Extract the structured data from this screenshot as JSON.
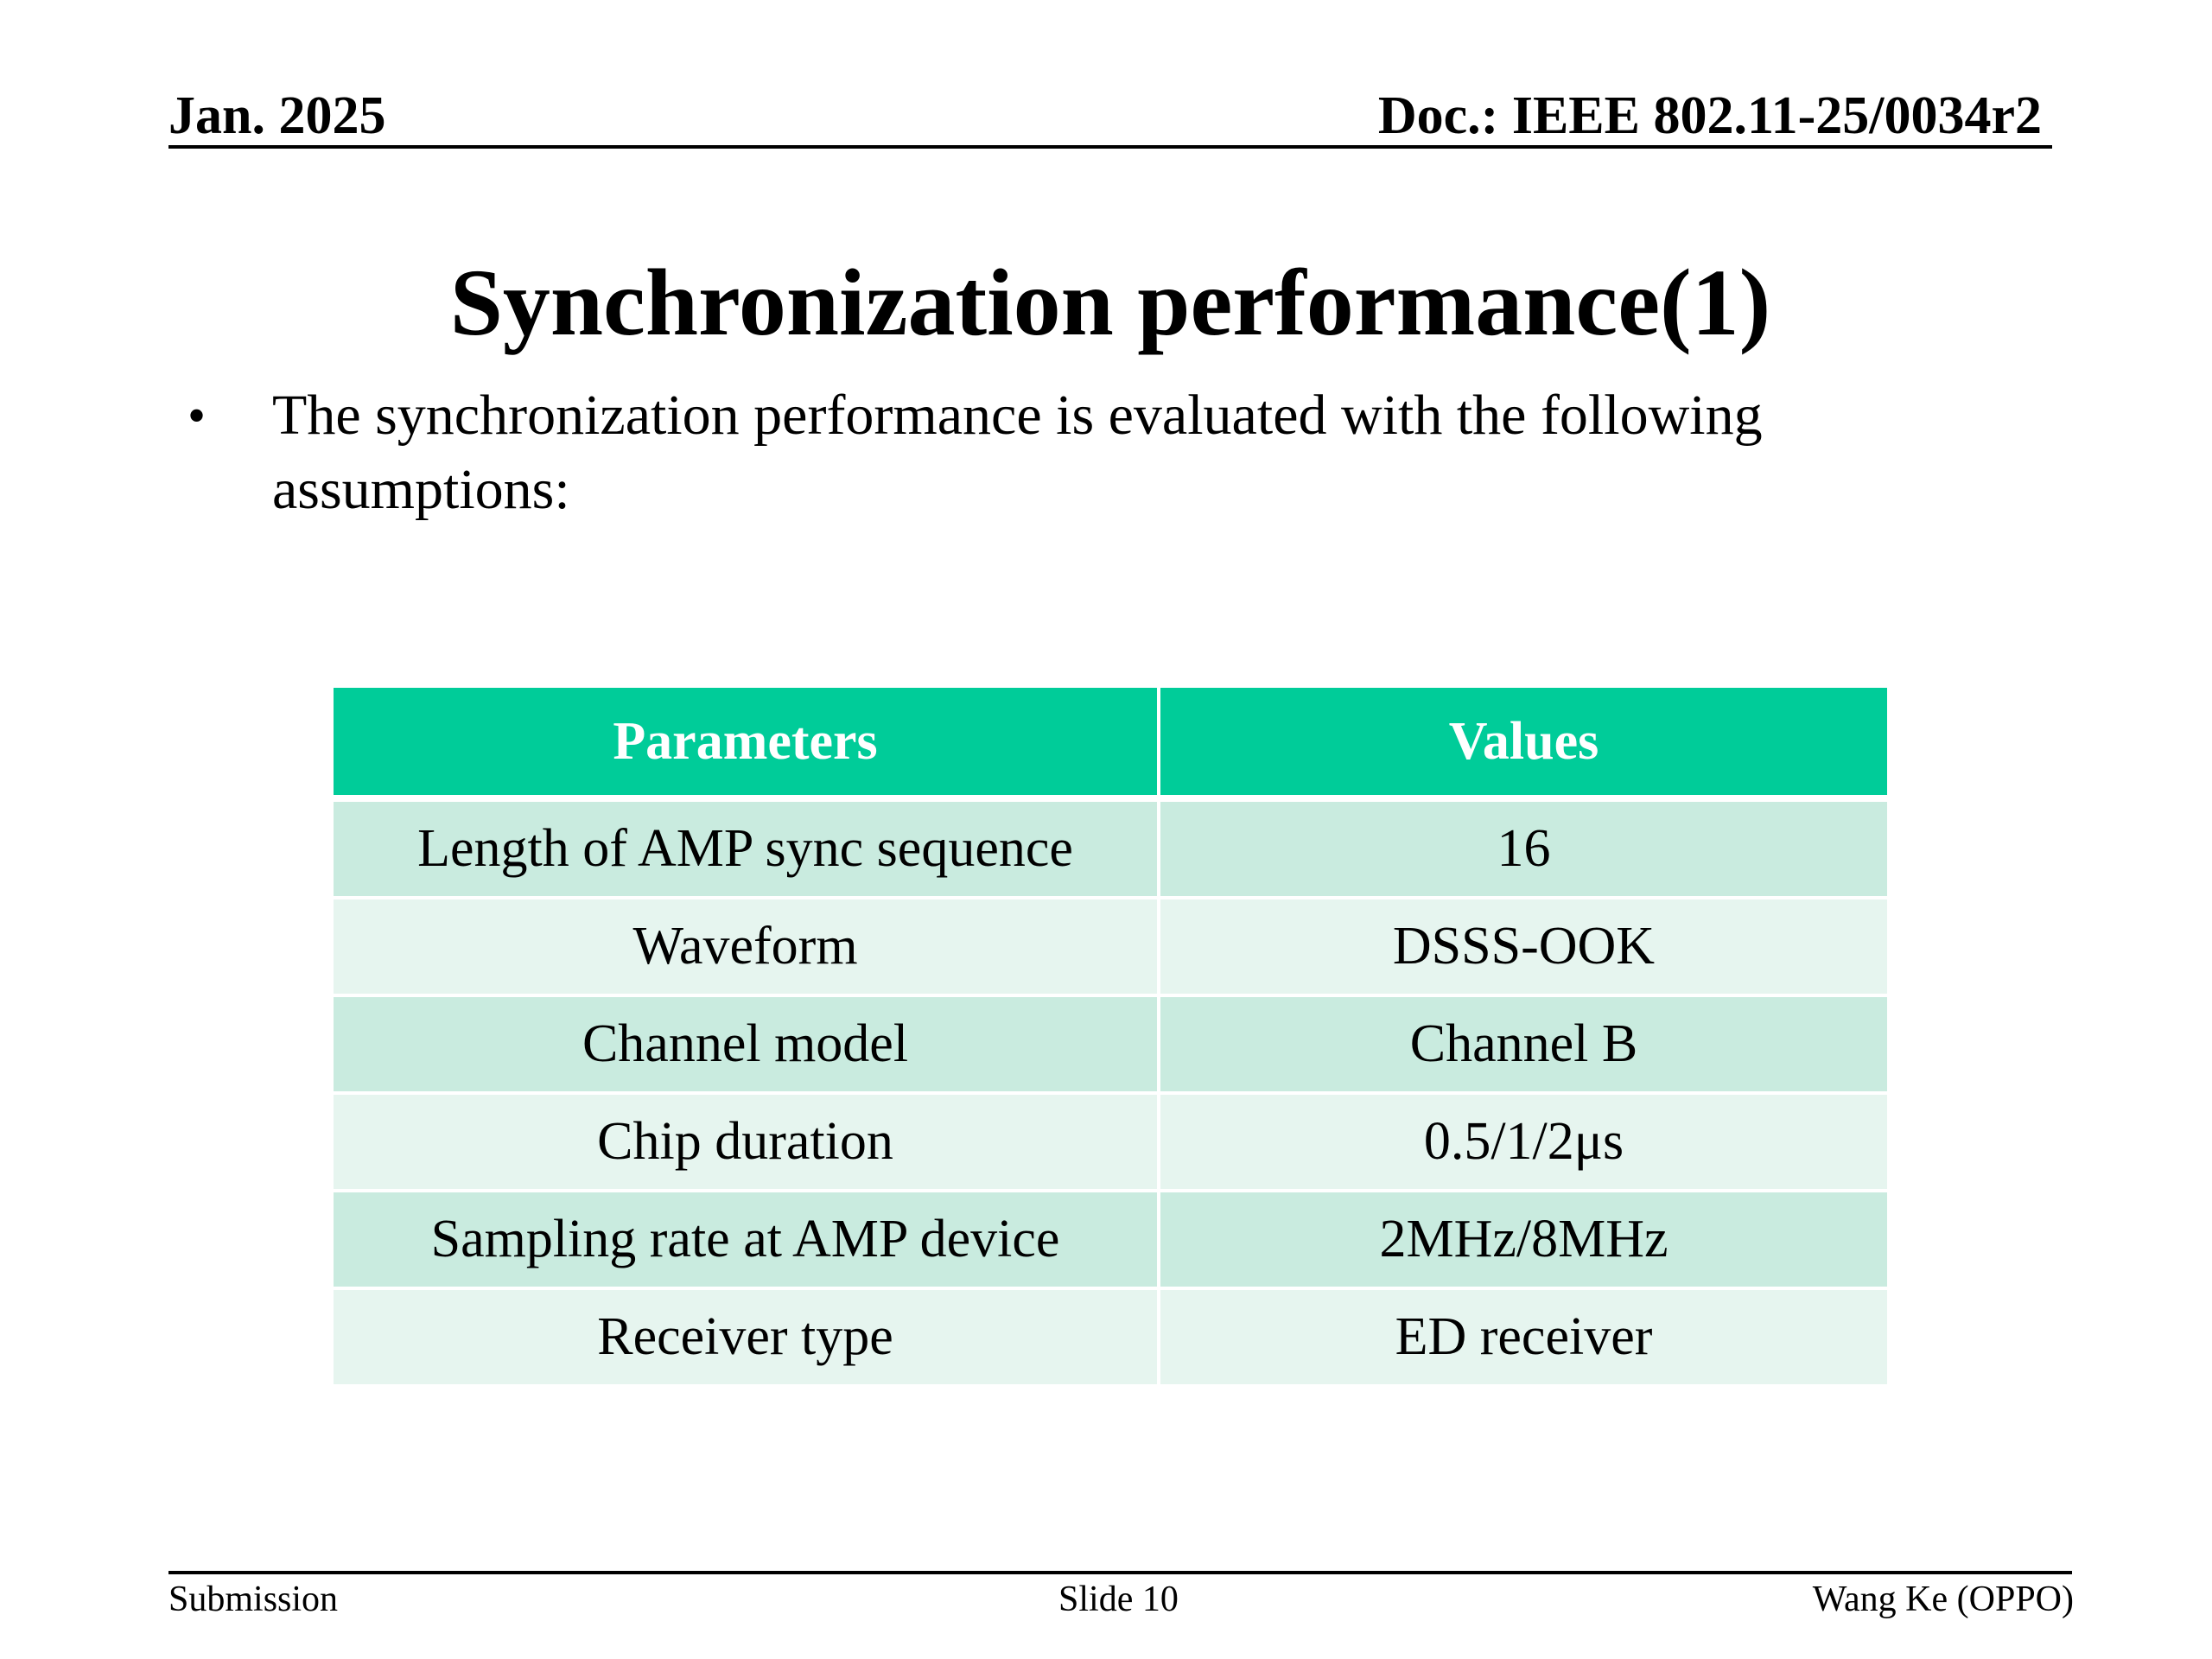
{
  "header": {
    "date": "Jan. 2025",
    "doc": "Doc.: IEEE 802.11-25/0034r2"
  },
  "title": "Synchronization performance(1)",
  "bullet": {
    "text": "The synchronization performance is evaluated with the  following assumptions:"
  },
  "table": {
    "headers": [
      "Parameters",
      "Values"
    ],
    "rows": [
      [
        "Length of AMP sync sequence",
        "16"
      ],
      [
        "Waveform",
        "DSSS-OOK"
      ],
      [
        "Channel model",
        "Channel B"
      ],
      [
        "Chip duration",
        "0.5/1/2μs"
      ],
      [
        "Sampling rate at AMP device",
        "2MHz/8MHz"
      ],
      [
        "Receiver type",
        "ED receiver"
      ]
    ],
    "colors": {
      "header": "#00cc99",
      "row_dark": "#c9ebdf",
      "row_light": "#e6f5ef"
    }
  },
  "footer": {
    "left": "Submission",
    "center": "Slide 10",
    "right": "Wang Ke (OPPO)"
  }
}
